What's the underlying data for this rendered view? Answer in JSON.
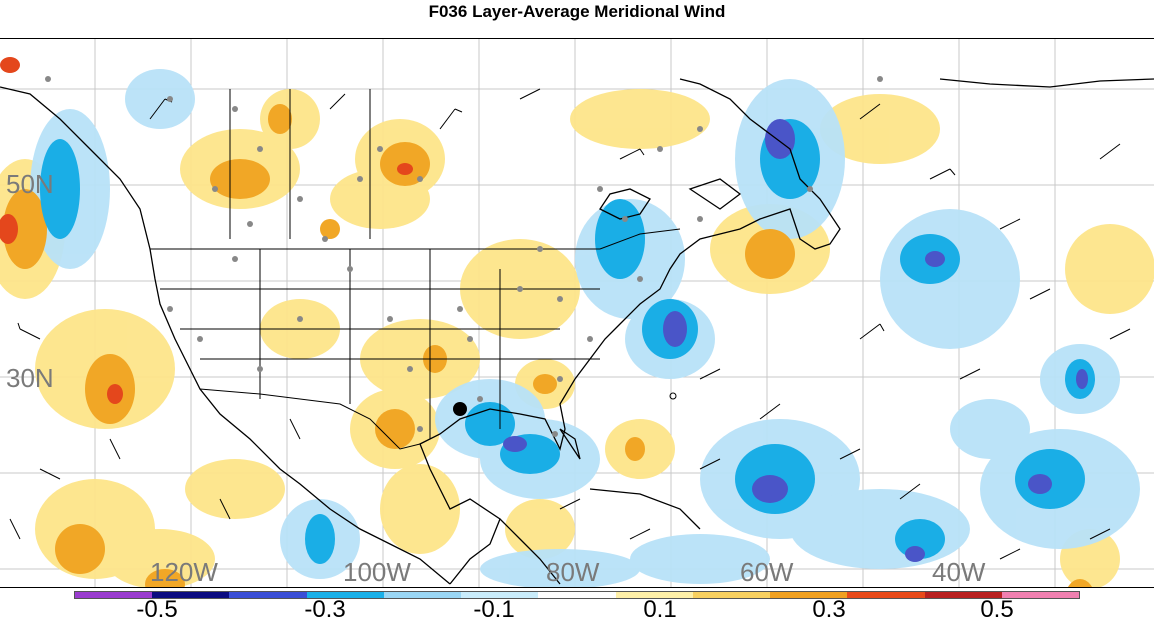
{
  "title": "F036 Layer-Average Meridional Wind",
  "lat_labels": [
    "50N",
    "30N"
  ],
  "lon_labels": [
    "120W",
    "100W",
    "80W",
    "60W",
    "40W"
  ],
  "colorbar": {
    "colors": [
      "#9a3ccf",
      "#0b0b80",
      "#3b4fd6",
      "#1ab0e8",
      "#9ad6f4",
      "#c9ecfb",
      "#ffffff",
      "#fff0a8",
      "#f8d060",
      "#f0a020",
      "#e84a1a",
      "#b82020",
      "#f080b0"
    ],
    "labels": [
      "-0.5",
      "-0.3",
      "-0.1",
      "0.1",
      "0.3",
      "0.5"
    ]
  },
  "colors": {
    "negative_light": "#b8e2f8",
    "negative_mid": "#1aaee6",
    "negative_dark": "#4a55c8",
    "positive_light": "#fde58a",
    "positive_mid": "#f1a726",
    "positive_dark": "#e4471c",
    "station_dot": "#888888",
    "coast": "#000000"
  }
}
